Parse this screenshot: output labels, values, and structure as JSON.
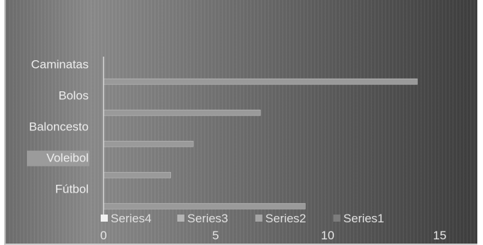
{
  "chart_data": {
    "type": "bar",
    "orientation": "horizontal",
    "categories": [
      "Fútbol",
      "Voleibol",
      "Baloncesto",
      "Bolos",
      "Caminatas"
    ],
    "series": [
      {
        "name": "Series1",
        "values": [
          0,
          0,
          0,
          0,
          0
        ]
      },
      {
        "name": "Series2",
        "values": [
          0,
          0,
          0,
          0,
          0
        ]
      },
      {
        "name": "Series3",
        "values": [
          0,
          0,
          0,
          0,
          0
        ]
      },
      {
        "name": "Series4",
        "values": [
          9,
          3,
          4,
          7,
          14
        ]
      }
    ],
    "xlim": [
      0,
      15
    ],
    "x_ticks": [
      "0",
      "5",
      "10",
      "15"
    ],
    "title": "",
    "xlabel": "",
    "ylabel": "",
    "legend_position": "bottom",
    "grid": false,
    "colors": {
      "bar": "#9a9a9a",
      "background": "#6a6a6a",
      "highlight_label_bg": "#9b9b9b"
    }
  }
}
